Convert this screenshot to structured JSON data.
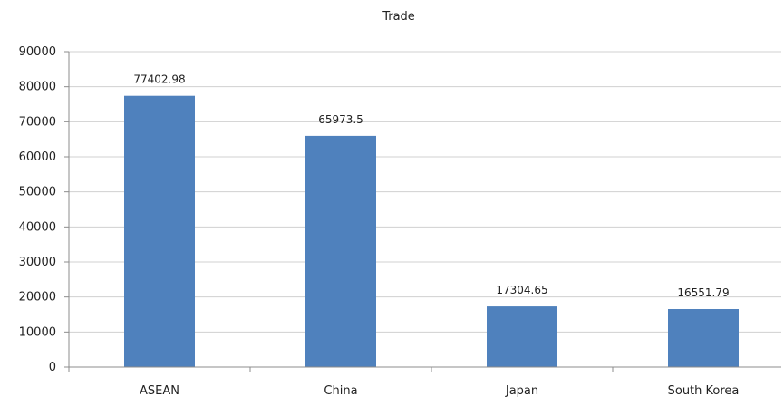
{
  "chart_data": {
    "type": "bar",
    "title": "Trade",
    "categories": [
      "ASEAN",
      "China",
      "Japan",
      "South Korea"
    ],
    "values": [
      77402.98,
      65973.5,
      17304.65,
      16551.79
    ],
    "data_labels": [
      "77402.98",
      "65973.5",
      "17304.65",
      "16551.79"
    ],
    "ylim": [
      0,
      90000
    ],
    "yticks": [
      "0",
      "10000",
      "20000",
      "30000",
      "40000",
      "50000",
      "60000",
      "70000",
      "80000",
      "90000"
    ],
    "xlabel": "",
    "ylabel": "",
    "grid": true,
    "legend": "none",
    "bar_color": "#4f81bd"
  }
}
